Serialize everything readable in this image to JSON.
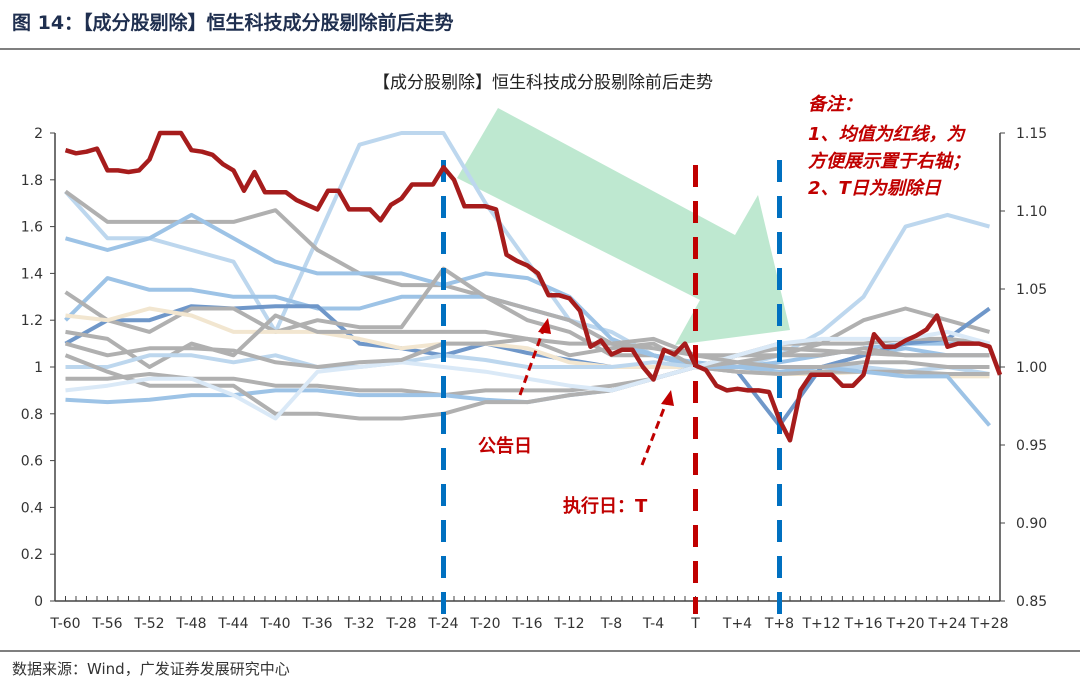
{
  "figure_title": "图 14：【成分股剔除】恒生科技成分股剔除前后走势",
  "source": "数据来源：Wind，广发证券发展研究中心",
  "chart_data": {
    "type": "line",
    "title": "【成分股剔除】恒生科技成分股剔除前后走势",
    "x_tick_labels": [
      "T-60",
      "T-56",
      "T-52",
      "T-48",
      "T-44",
      "T-40",
      "T-36",
      "T-32",
      "T-28",
      "T-24",
      "T-20",
      "T-16",
      "T-12",
      "T-8",
      "T-4",
      "T",
      "T+4",
      "T+8",
      "T+12",
      "T+16",
      "T+20",
      "T+24",
      "T+28"
    ],
    "left_axis": {
      "ylim": [
        0,
        2
      ],
      "ticks": [
        "0",
        "0.2",
        "0.4",
        "0.6",
        "0.8",
        "1",
        "1.2",
        "1.4",
        "1.6",
        "1.8",
        "2"
      ]
    },
    "right_axis": {
      "ylim": [
        0.85,
        1.15
      ],
      "ticks": [
        "0.85",
        "0.90",
        "0.95",
        "1.00",
        "1.05",
        "1.10",
        "1.15"
      ]
    },
    "mean_series": {
      "axis": "right",
      "color": "#a61c1c",
      "x_start": -60,
      "values": [
        1.139,
        1.137,
        1.138,
        1.14,
        1.126,
        1.126,
        1.125,
        1.126,
        1.133,
        1.15,
        1.15,
        1.15,
        1.139,
        1.138,
        1.136,
        1.13,
        1.126,
        1.113,
        1.125,
        1.112,
        1.112,
        1.112,
        1.107,
        1.104,
        1.101,
        1.113,
        1.113,
        1.101,
        1.101,
        1.101,
        1.094,
        1.104,
        1.108,
        1.117,
        1.117,
        1.117,
        1.128,
        1.12,
        1.103,
        1.103,
        1.103,
        1.101,
        1.072,
        1.068,
        1.065,
        1.06,
        1.046,
        1.046,
        1.044,
        1.036,
        1.013,
        1.017,
        1.008,
        1.011,
        1.011,
        1.0,
        0.992,
        1.011,
        1.008,
        1.015,
        1.001,
        0.998,
        0.988,
        0.985,
        0.986,
        0.985,
        0.985,
        0.984,
        0.966,
        0.953,
        0.985,
        0.995,
        0.995,
        0.995,
        0.988,
        0.988,
        0.995,
        1.021,
        1.013,
        1.013,
        1.017,
        1.02,
        1.024,
        1.033,
        1.013,
        1.015,
        1.015,
        1.015,
        1.013,
        0.995
      ]
    },
    "constituent_series_x": [
      -60,
      -56,
      -52,
      -48,
      -44,
      -40,
      -36,
      -32,
      -28,
      -24,
      -20,
      -16,
      -12,
      -8,
      -4,
      0,
      4,
      8,
      12,
      16,
      20,
      24,
      28
    ],
    "constituent_series": [
      {
        "color": "#bdd7ee",
        "values": [
          1.75,
          1.55,
          1.55,
          1.5,
          1.45,
          1.15,
          1.55,
          1.95,
          2.0,
          2.0,
          1.7,
          1.45,
          1.2,
          1.15,
          1.05,
          1.0,
          1.0,
          1.05,
          1.15,
          1.3,
          1.6,
          1.65,
          1.6
        ]
      },
      {
        "color": "#b0b0b0",
        "values": [
          1.75,
          1.62,
          1.62,
          1.62,
          1.62,
          1.67,
          1.5,
          1.4,
          1.35,
          1.35,
          1.3,
          1.2,
          1.15,
          1.05,
          1.05,
          1.0,
          1.05,
          1.05,
          1.1,
          1.2,
          1.25,
          1.2,
          1.15
        ]
      },
      {
        "color": "#9dc3e6",
        "values": [
          1.55,
          1.5,
          1.55,
          1.65,
          1.55,
          1.45,
          1.4,
          1.4,
          1.4,
          1.35,
          1.4,
          1.38,
          1.3,
          1.12,
          1.05,
          1.02,
          1.0,
          0.98,
          1.0,
          1.05,
          1.08,
          1.05,
          1.05
        ]
      },
      {
        "color": "#9dc3e6",
        "values": [
          1.2,
          1.38,
          1.33,
          1.33,
          1.3,
          1.3,
          1.25,
          1.25,
          1.3,
          1.3,
          1.3,
          1.25,
          1.2,
          1.1,
          1.05,
          1.0,
          1.0,
          1.02,
          1.05,
          1.08,
          1.1,
          1.1,
          1.1
        ]
      },
      {
        "color": "#6f97c9",
        "values": [
          1.1,
          1.2,
          1.2,
          1.26,
          1.25,
          1.26,
          1.26,
          1.1,
          1.08,
          1.05,
          1.1,
          1.06,
          1.03,
          1.0,
          1.0,
          1.0,
          0.98,
          0.75,
          1.0,
          1.05,
          1.1,
          1.12,
          1.25
        ]
      },
      {
        "color": "#b0b0b0",
        "values": [
          1.32,
          1.2,
          1.15,
          1.25,
          1.25,
          1.15,
          1.2,
          1.17,
          1.17,
          1.42,
          1.3,
          1.25,
          1.2,
          1.1,
          1.08,
          1.05,
          1.05,
          1.1,
          1.1,
          1.1,
          1.12,
          1.12,
          1.1
        ]
      },
      {
        "color": "#f2e6d0",
        "values": [
          1.22,
          1.2,
          1.25,
          1.22,
          1.15,
          1.15,
          1.15,
          1.12,
          1.08,
          1.1,
          1.1,
          1.08,
          1.02,
          1.0,
          1.0,
          1.0,
          0.98,
          0.97,
          0.97,
          0.98,
          0.97,
          0.96,
          0.96
        ]
      },
      {
        "color": "#b0b0b0",
        "values": [
          1.15,
          1.12,
          1.0,
          1.1,
          1.05,
          1.22,
          1.15,
          1.15,
          1.15,
          1.15,
          1.15,
          1.12,
          1.05,
          1.08,
          1.1,
          1.0,
          1.05,
          1.08,
          1.07,
          1.06,
          1.05,
          1.05,
          1.05
        ]
      },
      {
        "color": "#bdd7ee",
        "values": [
          1.0,
          1.0,
          1.05,
          1.05,
          1.02,
          1.05,
          1.0,
          1.0,
          1.02,
          1.05,
          1.03,
          1.0,
          1.0,
          1.0,
          1.02,
          1.0,
          1.0,
          1.0,
          1.0,
          1.0,
          0.98,
          1.0,
          0.97
        ]
      },
      {
        "color": "#b0b0b0",
        "values": [
          0.95,
          0.95,
          0.97,
          0.95,
          0.95,
          0.92,
          0.92,
          0.9,
          0.9,
          0.88,
          0.9,
          0.9,
          0.9,
          0.92,
          0.95,
          1.0,
          0.98,
          0.97,
          0.98,
          0.98,
          0.98,
          0.97,
          0.97
        ]
      },
      {
        "color": "#9dc3e6",
        "values": [
          0.86,
          0.85,
          0.86,
          0.88,
          0.88,
          0.9,
          0.9,
          0.88,
          0.88,
          0.88,
          0.86,
          0.85,
          0.88,
          0.9,
          0.95,
          1.0,
          1.0,
          1.0,
          1.0,
          0.98,
          0.96,
          0.96,
          0.75
        ]
      },
      {
        "color": "#b0b0b0",
        "values": [
          1.05,
          0.98,
          0.92,
          0.92,
          0.92,
          0.8,
          0.8,
          0.78,
          0.78,
          0.8,
          0.85,
          0.85,
          0.88,
          0.9,
          0.95,
          1.0,
          1.02,
          1.05,
          1.05,
          1.08,
          1.05,
          1.05,
          1.05
        ]
      },
      {
        "color": "#dae9f7",
        "values": [
          0.9,
          0.92,
          0.95,
          0.95,
          0.88,
          0.78,
          0.98,
          1.0,
          1.02,
          1.0,
          0.98,
          0.95,
          0.92,
          0.9,
          0.95,
          1.0,
          1.05,
          1.1,
          1.12,
          1.12,
          1.12,
          1.15,
          1.1
        ]
      },
      {
        "color": "#b0b0b0",
        "values": [
          1.1,
          1.05,
          1.08,
          1.08,
          1.07,
          1.02,
          1.0,
          1.02,
          1.03,
          1.1,
          1.1,
          1.12,
          1.1,
          1.1,
          1.12,
          1.05,
          1.02,
          1.0,
          1.0,
          1.02,
          1.02,
          1.0,
          1.0
        ]
      }
    ],
    "event_lines": [
      {
        "x": -24,
        "color": "#0070c0",
        "label": "公告日"
      },
      {
        "x": 0,
        "color": "#c00000",
        "label": "执行日：T"
      },
      {
        "x": 8,
        "color": "#0070c0"
      }
    ],
    "annotations": {
      "note_title": "备注：",
      "note_lines": [
        "1、均值为红线，为",
        "方便展示置于右轴；",
        "2、T日为剔除日"
      ],
      "announce": "公告日",
      "execute": "执行日：T"
    }
  }
}
